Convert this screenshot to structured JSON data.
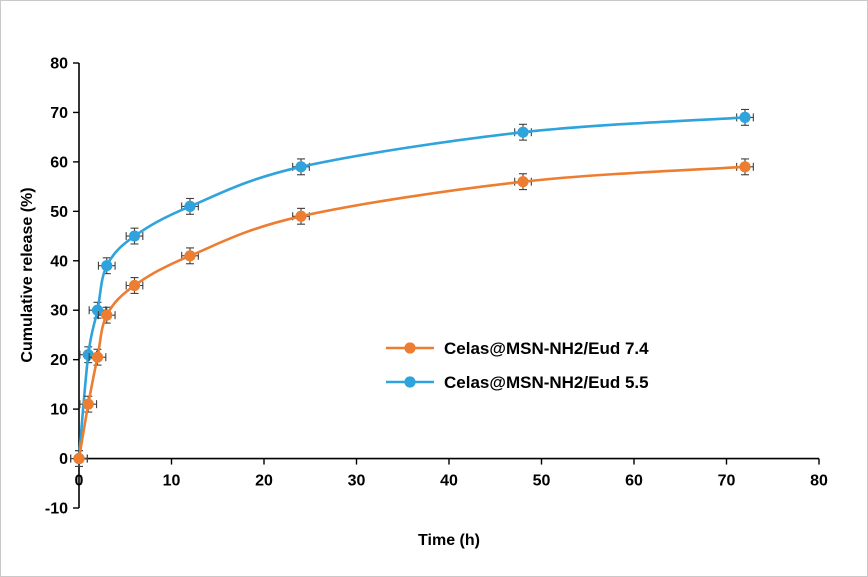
{
  "chart_data": {
    "type": "line",
    "title": "",
    "xlabel": "Time (h)",
    "ylabel": "Cumulative release (%)",
    "xlim": [
      0,
      80
    ],
    "ylim": [
      -10,
      80
    ],
    "x_ticks": [
      0,
      10,
      20,
      30,
      40,
      50,
      60,
      70,
      80
    ],
    "y_ticks": [
      -10,
      0,
      10,
      20,
      30,
      40,
      50,
      60,
      70,
      80
    ],
    "grid": false,
    "legend_position": "inside-center",
    "axis_color": "#000000",
    "errorbar_color": "#404040",
    "x": [
      0,
      1,
      2,
      3,
      6,
      12,
      24,
      48,
      72
    ],
    "series": [
      {
        "name": "Celas@MSN-NH2/Eud 7.4",
        "color": "#ED7D31",
        "values": [
          0,
          11,
          20.5,
          29,
          35,
          41,
          49,
          56,
          59
        ],
        "y_error": 1.6,
        "x_error": 0.9
      },
      {
        "name": "Celas@MSN-NH2/Eud 5.5",
        "color": "#2FA3DC",
        "values": [
          0,
          21,
          30,
          39,
          45,
          51,
          59,
          66,
          69
        ],
        "y_error": 1.6,
        "x_error": 0.9
      }
    ]
  }
}
